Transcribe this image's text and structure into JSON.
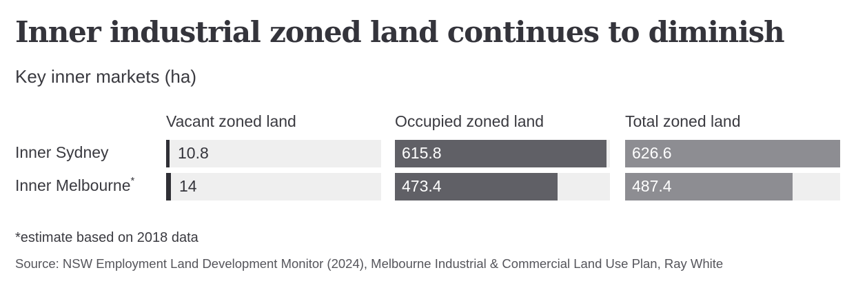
{
  "title": "Inner industrial zoned land continues to diminish",
  "subtitle": "Key inner markets (ha)",
  "footnote": "*estimate based on 2018 data",
  "source": "Source: NSW Employment Land Development Monitor (2024), Melbourne Industrial & Commercial Land Use Plan, Ray White",
  "colors": {
    "vacant": "#2f2f35",
    "occupied": "#606066",
    "total": "#8d8d92",
    "track": "#efefef",
    "text": "#34343b"
  },
  "chart_data": {
    "type": "bar",
    "orientation": "horizontal",
    "categories": [
      "Inner Sydney",
      "Inner Melbourne"
    ],
    "category_markers": [
      "",
      "*"
    ],
    "series": [
      {
        "name": "Vacant zoned land",
        "values": [
          10.8,
          14
        ]
      },
      {
        "name": "Occupied zoned land",
        "values": [
          615.8,
          473.4
        ]
      },
      {
        "name": "Total zoned land",
        "values": [
          626.6,
          487.4
        ]
      }
    ],
    "value_labels": [
      [
        "10.8",
        "14"
      ],
      [
        "615.8",
        "473.4"
      ],
      [
        "626.6",
        "487.4"
      ]
    ],
    "panel_scales": [
      [
        0,
        626.6
      ],
      [
        0,
        626.6
      ],
      [
        0,
        626.6
      ]
    ],
    "grid": false,
    "legend": "column headers"
  }
}
